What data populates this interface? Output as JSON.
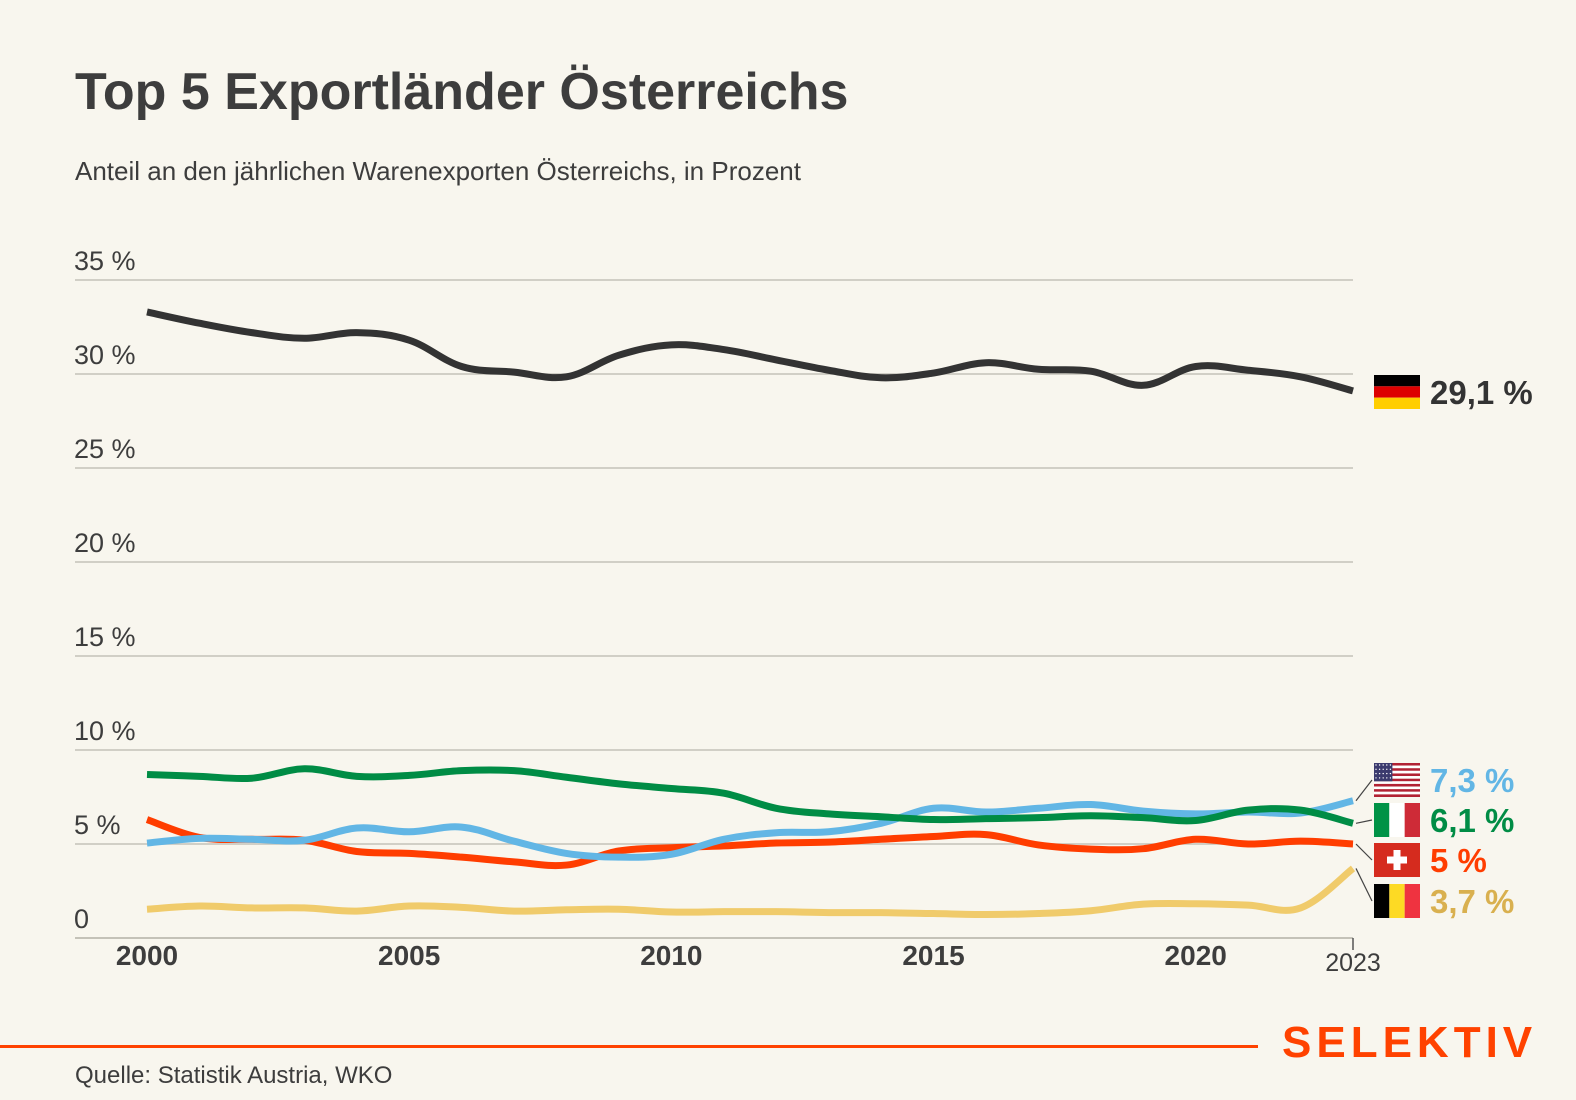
{
  "chart_data": {
    "type": "line",
    "title": "Top 5 Exportländer Österreichs",
    "subtitle": "Anteil an den jährlichen Warenexporten Österreichs, in Prozent",
    "xlabel": "",
    "ylabel": "",
    "ylim": [
      0,
      35
    ],
    "xlim": [
      2000,
      2023
    ],
    "grid": true,
    "y_ticks": [
      0,
      5,
      10,
      15,
      20,
      25,
      30,
      35
    ],
    "y_tick_labels": [
      "0",
      "5 %",
      "10 %",
      "15 %",
      "20 %",
      "25 %",
      "30 %",
      "35 %"
    ],
    "x_ticks": [
      2000,
      2005,
      2010,
      2015,
      2020,
      2023
    ],
    "x_tick_labels": [
      "2000",
      "2005",
      "2010",
      "2015",
      "2020",
      "2023"
    ],
    "x": [
      2000,
      2001,
      2002,
      2003,
      2004,
      2005,
      2006,
      2007,
      2008,
      2009,
      2010,
      2011,
      2012,
      2013,
      2014,
      2015,
      2016,
      2017,
      2018,
      2019,
      2020,
      2021,
      2022,
      2023
    ],
    "series": [
      {
        "name": "Deutschland",
        "flag": "flag-germany",
        "color": "#333333",
        "end_label": "29,1 %",
        "values": [
          33.3,
          32.7,
          32.2,
          31.9,
          32.2,
          31.8,
          30.4,
          30.1,
          29.85,
          31.0,
          31.55,
          31.3,
          30.75,
          30.2,
          29.8,
          30.05,
          30.6,
          30.25,
          30.15,
          29.4,
          30.4,
          30.2,
          29.85,
          29.1
        ]
      },
      {
        "name": "USA",
        "flag": "flag-usa",
        "color": "#62b6e5",
        "end_label": "7,3 %",
        "values": [
          5.05,
          5.3,
          5.25,
          5.2,
          5.85,
          5.65,
          5.9,
          5.15,
          4.5,
          4.3,
          4.45,
          5.25,
          5.6,
          5.65,
          6.1,
          6.9,
          6.7,
          6.9,
          7.1,
          6.75,
          6.6,
          6.7,
          6.65,
          7.3
        ]
      },
      {
        "name": "Italien",
        "flag": "flag-italy",
        "color": "#008c45",
        "end_label": "6,1 %",
        "values": [
          8.7,
          8.6,
          8.5,
          9.0,
          8.6,
          8.65,
          8.9,
          8.9,
          8.55,
          8.2,
          7.95,
          7.7,
          6.9,
          6.6,
          6.45,
          6.3,
          6.35,
          6.4,
          6.5,
          6.4,
          6.25,
          6.8,
          6.8,
          6.1
        ]
      },
      {
        "name": "Schweiz",
        "flag": "flag-switzerland",
        "color": "#ff3d00",
        "end_label": "5 %",
        "values": [
          6.3,
          5.35,
          5.25,
          5.2,
          4.6,
          4.5,
          4.3,
          4.05,
          3.88,
          4.63,
          4.8,
          4.9,
          5.05,
          5.1,
          5.25,
          5.4,
          5.5,
          4.95,
          4.73,
          4.75,
          5.25,
          5.0,
          5.15,
          5.0
        ]
      },
      {
        "name": "Belgien",
        "flag": "flag-belgium",
        "color": "#f0cb6b",
        "label_color": "#d9b04f",
        "end_label": "3,7 %",
        "values": [
          1.53,
          1.7,
          1.6,
          1.6,
          1.43,
          1.7,
          1.63,
          1.43,
          1.5,
          1.53,
          1.38,
          1.4,
          1.4,
          1.35,
          1.35,
          1.3,
          1.25,
          1.3,
          1.45,
          1.8,
          1.82,
          1.75,
          1.6,
          3.7
        ]
      }
    ]
  },
  "footer": {
    "source": "Quelle: Statistik Austria, WKO",
    "brand": "SELEKTIV"
  },
  "colors": {
    "background": "#f8f6ee",
    "text": "#3d3d3d",
    "grid": "#c4c2b8",
    "brand": "#ff4200"
  }
}
